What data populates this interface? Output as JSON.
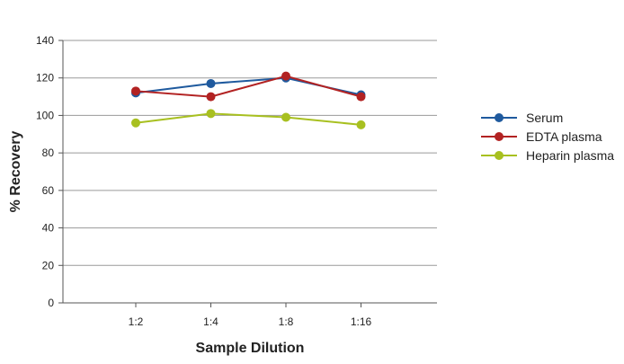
{
  "chart_data": {
    "type": "line",
    "xlabel": "Sample Dilution",
    "ylabel": "% Recovery",
    "categories": [
      "1:2",
      "1:4",
      "1:8",
      "1:16"
    ],
    "ylim": [
      0,
      140
    ],
    "yticks": [
      0,
      20,
      40,
      60,
      80,
      100,
      120,
      140
    ],
    "grid": true,
    "legend_position": "right",
    "series": [
      {
        "name": "Serum",
        "color": "#1f5a9e",
        "values": [
          112,
          117,
          120,
          111
        ]
      },
      {
        "name": "EDTA plasma",
        "color": "#b22222",
        "values": [
          113,
          110,
          121,
          110
        ]
      },
      {
        "name": "Heparin plasma",
        "color": "#a8c020",
        "values": [
          96,
          101,
          99,
          95
        ]
      }
    ]
  }
}
